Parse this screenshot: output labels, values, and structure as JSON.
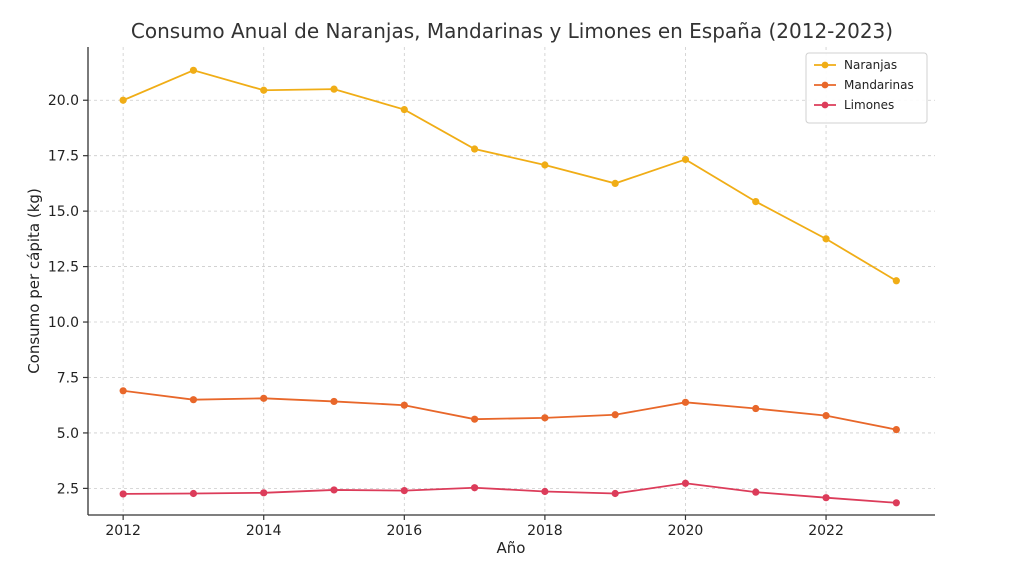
{
  "chart_data": {
    "type": "line",
    "title": "Consumo Anual de Naranjas, Mandarinas y Limones en España (2012-2023)",
    "xlabel": "Año",
    "ylabel": "Consumo per cápita (kg)",
    "x": [
      2012,
      2013,
      2014,
      2015,
      2016,
      2017,
      2018,
      2019,
      2020,
      2021,
      2022,
      2023
    ],
    "xticks": [
      2012,
      2014,
      2016,
      2018,
      2020,
      2022
    ],
    "xtick_labels": [
      "2012",
      "2014",
      "2016",
      "2018",
      "2020",
      "2022"
    ],
    "yticks": [
      2.5,
      5.0,
      7.5,
      10.0,
      12.5,
      15.0,
      17.5,
      20.0
    ],
    "ytick_labels": [
      "2.5",
      "5.0",
      "7.5",
      "10.0",
      "12.5",
      "15.0",
      "17.5",
      "20.0"
    ],
    "xlim": [
      2011.5,
      2023.55
    ],
    "ylim": [
      1.3,
      22.4
    ],
    "grid": true,
    "legend_position": "top-right",
    "series": [
      {
        "name": "Naranjas",
        "color": "#f0ad16",
        "values": [
          20.0,
          21.35,
          20.45,
          20.5,
          19.58,
          17.8,
          17.08,
          16.25,
          17.33,
          15.43,
          13.75,
          11.86
        ]
      },
      {
        "name": "Mandarinas",
        "color": "#e8672a",
        "values": [
          6.9,
          6.5,
          6.56,
          6.42,
          6.25,
          5.62,
          5.68,
          5.82,
          6.38,
          6.1,
          5.78,
          5.15
        ]
      },
      {
        "name": "Limones",
        "color": "#dc3c5a",
        "values": [
          2.25,
          2.27,
          2.3,
          2.43,
          2.4,
          2.53,
          2.36,
          2.27,
          2.73,
          2.33,
          2.08,
          1.85
        ]
      }
    ]
  }
}
